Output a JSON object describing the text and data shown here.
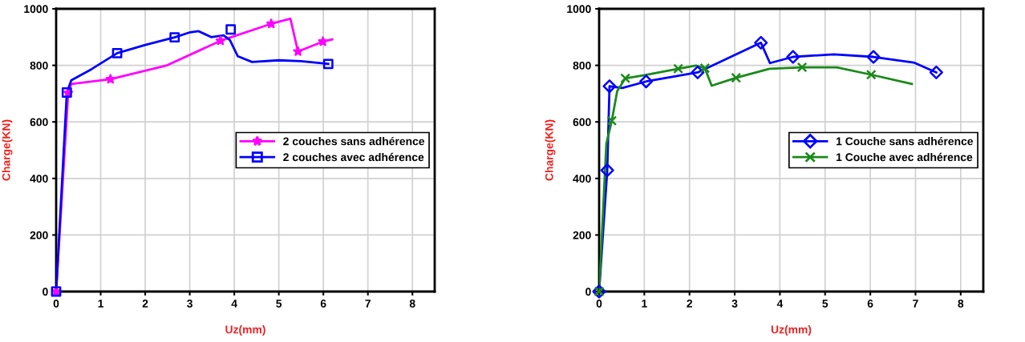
{
  "chart_data": [
    {
      "type": "line",
      "xlabel": "Uz(mm)",
      "ylabel": "Charge(KN)",
      "xlim": [
        0,
        8.5
      ],
      "ylim": [
        0,
        1000
      ],
      "xticks": [
        0,
        1,
        2,
        3,
        4,
        5,
        6,
        7,
        8
      ],
      "yticks": [
        0,
        200,
        400,
        600,
        800,
        1000
      ],
      "grid": true,
      "legend": "right",
      "line_style": "solid",
      "series": [
        {
          "color": "#ff00ff",
          "x": [
            0,
            0.27,
            0.34,
            1.22,
            2.49,
            3.69,
            4.83,
            5.26,
            5.43,
            5.99,
            6.2
          ],
          "values": [
            0,
            702,
            734,
            751,
            800,
            887,
            947,
            965,
            849,
            884,
            892
          ]
        },
        {
          "type": "scatter",
          "name": "2 couches sans adhérence",
          "color": "#ff00ff",
          "marker": "star",
          "x": [
            0,
            0.27,
            1.22,
            3.69,
            4.83,
            5.43,
            5.99
          ],
          "values": [
            0,
            702,
            751,
            887,
            947,
            849,
            884
          ]
        },
        {
          "color": "#0000ff",
          "x": [
            0,
            0.24,
            0.34,
            0.8,
            1.37,
            2.0,
            2.66,
            3.01,
            3.2,
            3.48,
            3.76,
            3.9,
            4.08,
            4.4,
            5.0,
            5.5,
            6.11
          ],
          "values": [
            0,
            704,
            747,
            787,
            843,
            872,
            899,
            917,
            921,
            900,
            906,
            890,
            832,
            812,
            818,
            815,
            805
          ]
        },
        {
          "type": "scatter",
          "name": "2 couches avec adhérence",
          "color": "#0000ff",
          "marker": "square",
          "x": [
            0,
            0.24,
            1.37,
            2.66,
            3.92,
            6.11
          ],
          "values": [
            0,
            704,
            843,
            899,
            927,
            805
          ]
        }
      ]
    },
    {
      "type": "line",
      "xlabel": "Uz(mm)",
      "ylabel": "Charge(KN)",
      "xlim": [
        0,
        8.5
      ],
      "ylim": [
        0,
        1000
      ],
      "xticks": [
        0,
        1,
        2,
        3,
        4,
        5,
        6,
        7,
        8
      ],
      "yticks": [
        0,
        200,
        400,
        600,
        800,
        1000
      ],
      "grid": true,
      "legend": "right",
      "line_style": "solid",
      "series": [
        {
          "color": "#0000ff",
          "x": [
            0,
            0.18,
            0.23,
            0.51,
            1.04,
            2.18,
            3.58,
            3.78,
            4.29,
            5.19,
            6.07,
            6.96,
            7.46
          ],
          "values": [
            0,
            429,
            726,
            720,
            743,
            775,
            880,
            808,
            830,
            839,
            830,
            810,
            775
          ]
        },
        {
          "type": "scatter",
          "name": "1 Couche sans adhérence",
          "color": "#0000ff",
          "marker": "diamond",
          "x": [
            0,
            0.18,
            0.23,
            1.04,
            2.18,
            3.58,
            4.29,
            6.07,
            7.46
          ],
          "values": [
            0,
            429,
            726,
            743,
            775,
            880,
            830,
            830,
            775
          ]
        },
        {
          "color": "#1a8a1a",
          "x": [
            0,
            0.16,
            0.28,
            0.4,
            0.58,
            1.0,
            1.75,
            2.14,
            2.34,
            2.49,
            3.03,
            3.77,
            4.49,
            5.26,
            6.02,
            6.92
          ],
          "values": [
            0,
            523,
            604,
            709,
            754,
            765,
            788,
            799,
            790,
            728,
            756,
            788,
            793,
            793,
            767,
            734
          ]
        },
        {
          "type": "scatter",
          "name": "1 Couche avec adhérence",
          "color": "#1a8a1a",
          "marker": "cross",
          "x": [
            0,
            0.28,
            0.58,
            1.75,
            2.34,
            3.03,
            4.49,
            6.02
          ],
          "values": [
            0,
            604,
            754,
            788,
            790,
            756,
            793,
            767
          ]
        }
      ]
    }
  ]
}
